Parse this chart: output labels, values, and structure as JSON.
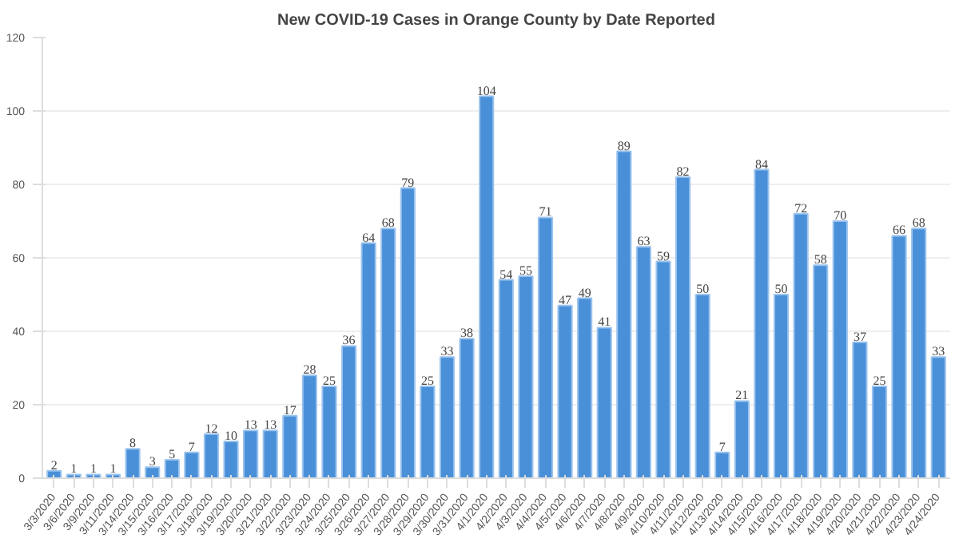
{
  "chart_data": {
    "type": "bar",
    "title": "New COVID-19 Cases in Orange County by Date Reported",
    "categories": [
      "3/3/2020",
      "3/6/2020",
      "3/9/2020",
      "3/11/2020",
      "3/14/2020",
      "3/15/2020",
      "3/16/2020",
      "3/17/2020",
      "3/18/2020",
      "3/19/2020",
      "3/20/2020",
      "3/21/2020",
      "3/22/2020",
      "3/23/2020",
      "3/24/2020",
      "3/25/2020",
      "3/26/2020",
      "3/27/2020",
      "3/28/2020",
      "3/29/2020",
      "3/30/2020",
      "3/31/2020",
      "4/1/2020",
      "4/2/2020",
      "4/3/2020",
      "4/4/2020",
      "4/5/2020",
      "4/6/2020",
      "4/7/2020",
      "4/8/2020",
      "4/9/2020",
      "4/10/2020",
      "4/11/2020",
      "4/12/2020",
      "4/13/2020",
      "4/14/2020",
      "4/15/2020",
      "4/16/2020",
      "4/17/2020",
      "4/18/2020",
      "4/19/2020",
      "4/20/2020",
      "4/21/2020",
      "4/22/2020",
      "4/23/2020",
      "4/24/2020"
    ],
    "values": [
      2,
      1,
      1,
      1,
      8,
      3,
      5,
      7,
      12,
      10,
      13,
      13,
      17,
      28,
      25,
      36,
      64,
      68,
      79,
      25,
      33,
      38,
      104,
      54,
      55,
      71,
      47,
      49,
      41,
      89,
      63,
      59,
      82,
      50,
      7,
      21,
      84,
      50,
      72,
      58,
      70,
      37,
      25,
      66,
      68,
      33
    ],
    "color": "#4a90d9",
    "ylim": [
      0,
      120
    ],
    "yticks": [
      0,
      20,
      40,
      60,
      80,
      100,
      120
    ],
    "grid": "y",
    "data_labels": true
  }
}
